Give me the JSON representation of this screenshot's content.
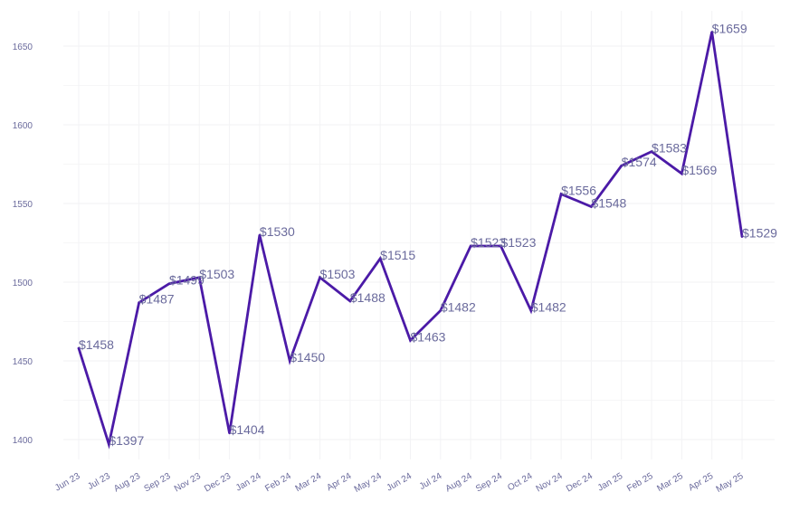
{
  "colors": {
    "line": "#4b1aa7",
    "grid": "#f3f3f5",
    "tick_text": "#6a6a9c",
    "label_text": "#6a6a9c",
    "background": "#ffffff"
  },
  "chart_data": {
    "type": "line",
    "title": "",
    "xlabel": "",
    "ylabel": "",
    "ylim": [
      1380,
      1665
    ],
    "yticks": [
      1400,
      1450,
      1500,
      1550,
      1600,
      1650
    ],
    "grid": true,
    "legend": "none",
    "categories": [
      "Jun 23",
      "Jul 23",
      "Aug 23",
      "Sep 23",
      "Nov 23",
      "Dec 23",
      "Jan 24",
      "Feb 24",
      "Mar 24",
      "Apr 24",
      "May 24",
      "Jun 24",
      "Jul 24",
      "Aug 24",
      "Sep 24",
      "Oct 24",
      "Nov 24",
      "Dec 24",
      "Jan 25",
      "Feb 25",
      "Mar 25",
      "Apr 25",
      "May 25"
    ],
    "values": [
      1458,
      1397,
      1487,
      1499,
      1503,
      1404,
      1530,
      1450,
      1503,
      1488,
      1515,
      1463,
      1482,
      1523,
      1523,
      1482,
      1556,
      1548,
      1574,
      1583,
      1569,
      1659,
      1529
    ],
    "data_labels": [
      "$1458",
      "$1397",
      "$1487",
      "$1499",
      "$1503",
      "$1404",
      "$1530",
      "$1450",
      "$1503",
      "$1488",
      "$1515",
      "$1463",
      "$1482",
      "$1523",
      "$1523",
      "$1482",
      "$1556",
      "$1548",
      "$1574",
      "$1583",
      "$1569",
      "$1659",
      "$1529"
    ]
  }
}
